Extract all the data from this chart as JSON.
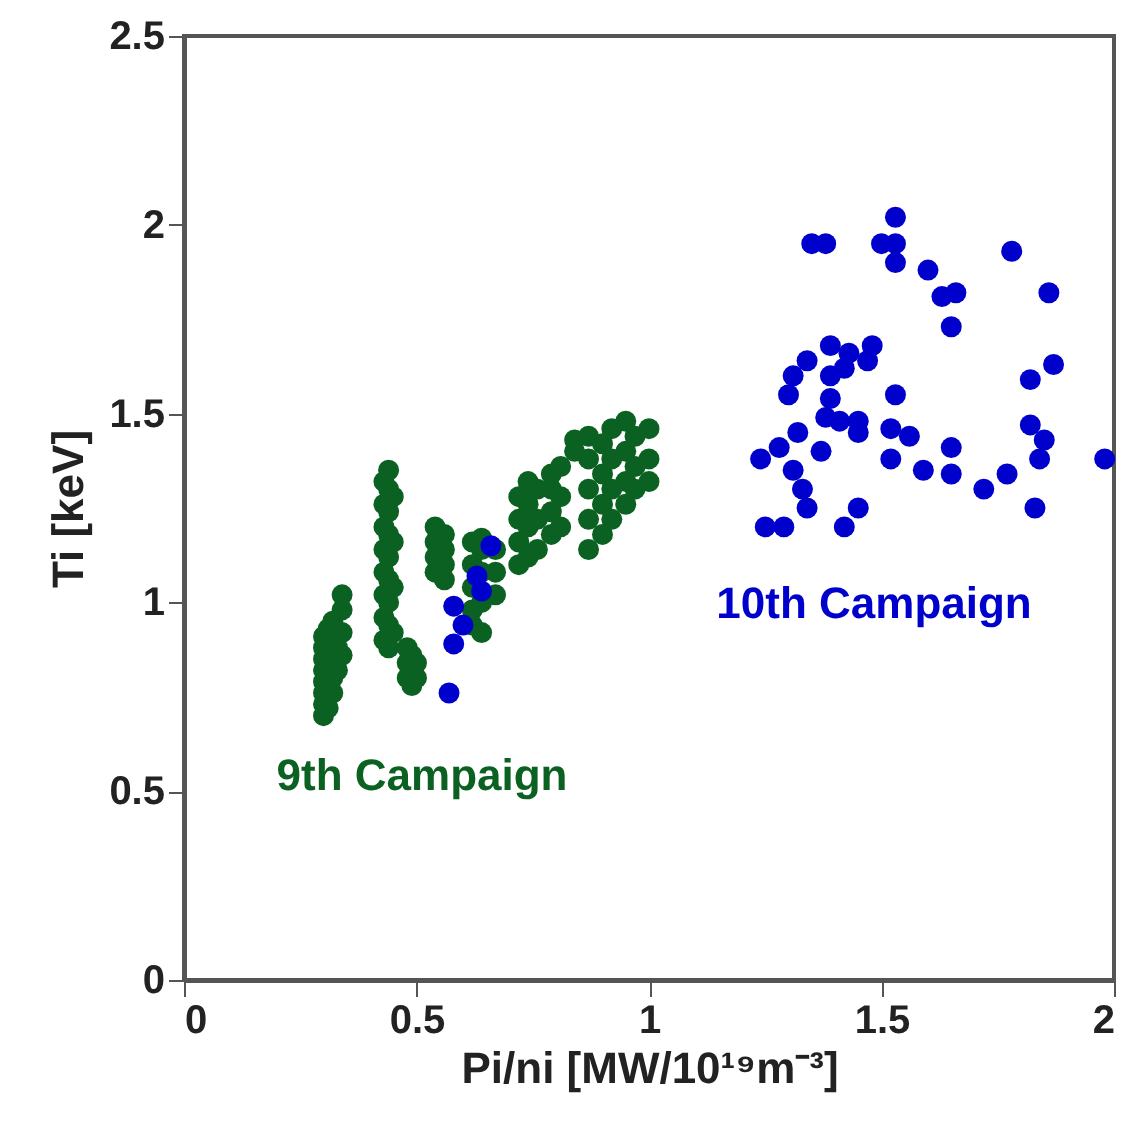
{
  "chart_data": {
    "type": "scatter",
    "xlabel": "Pi/ni [MW/10¹⁹m⁻³]",
    "ylabel": "Ti [keV]",
    "xlim": [
      0,
      2
    ],
    "ylim": [
      0,
      2.5
    ],
    "xticks": [
      0,
      0.5,
      1,
      1.5,
      2
    ],
    "yticks": [
      0,
      0.5,
      1,
      1.5,
      2,
      2.5
    ],
    "grid": false,
    "legend": false,
    "marker": "circle",
    "series": [
      {
        "name": "9th Campaign",
        "color": "#0b6121",
        "x": [
          0.3,
          0.3,
          0.3,
          0.3,
          0.3,
          0.3,
          0.3,
          0.3,
          0.31,
          0.31,
          0.32,
          0.32,
          0.32,
          0.33,
          0.33,
          0.34,
          0.34,
          0.34,
          0.34,
          0.43,
          0.43,
          0.43,
          0.43,
          0.43,
          0.43,
          0.43,
          0.43,
          0.44,
          0.44,
          0.44,
          0.44,
          0.44,
          0.44,
          0.44,
          0.44,
          0.44,
          0.45,
          0.45,
          0.45,
          0.45,
          0.48,
          0.48,
          0.48,
          0.49,
          0.49,
          0.5,
          0.5,
          0.54,
          0.54,
          0.54,
          0.54,
          0.56,
          0.56,
          0.56,
          0.56,
          0.62,
          0.62,
          0.62,
          0.62,
          0.62,
          0.64,
          0.64,
          0.64,
          0.64,
          0.64,
          0.67,
          0.67,
          0.67,
          0.72,
          0.72,
          0.72,
          0.72,
          0.74,
          0.74,
          0.74,
          0.74,
          0.76,
          0.76,
          0.76,
          0.79,
          0.79,
          0.79,
          0.79,
          0.81,
          0.81,
          0.81,
          0.84,
          0.84,
          0.87,
          0.87,
          0.87,
          0.87,
          0.87,
          0.9,
          0.9,
          0.9,
          0.9,
          0.92,
          0.92,
          0.92,
          0.92,
          0.95,
          0.95,
          0.95,
          0.95,
          0.97,
          0.97,
          0.97,
          1.0,
          1.0,
          1.0
        ],
        "values": [
          0.7,
          0.73,
          0.76,
          0.79,
          0.82,
          0.85,
          0.88,
          0.91,
          0.72,
          0.93,
          0.76,
          0.8,
          0.95,
          0.82,
          0.88,
          0.86,
          0.92,
          0.98,
          1.02,
          0.9,
          0.96,
          1.02,
          1.08,
          1.14,
          1.2,
          1.26,
          1.32,
          0.88,
          0.94,
          1.0,
          1.06,
          1.12,
          1.18,
          1.24,
          1.3,
          1.35,
          0.92,
          1.04,
          1.16,
          1.28,
          0.8,
          0.84,
          0.88,
          0.78,
          0.86,
          0.8,
          0.84,
          1.08,
          1.12,
          1.16,
          1.2,
          1.06,
          1.1,
          1.14,
          1.18,
          0.94,
          0.98,
          1.04,
          1.1,
          1.16,
          0.92,
          1.0,
          1.08,
          1.14,
          1.17,
          1.02,
          1.08,
          1.14,
          1.1,
          1.16,
          1.22,
          1.28,
          1.12,
          1.2,
          1.26,
          1.32,
          1.14,
          1.22,
          1.3,
          1.18,
          1.24,
          1.3,
          1.34,
          1.2,
          1.28,
          1.36,
          1.43,
          1.4,
          1.14,
          1.22,
          1.3,
          1.38,
          1.44,
          1.18,
          1.26,
          1.34,
          1.42,
          1.22,
          1.3,
          1.38,
          1.46,
          1.26,
          1.32,
          1.4,
          1.48,
          1.3,
          1.36,
          1.44,
          1.32,
          1.38,
          1.46
        ]
      },
      {
        "name": "10th Campaign",
        "color": "#0000cc",
        "x": [
          1.35,
          1.38,
          1.53,
          1.53,
          1.5,
          1.53,
          1.6,
          1.63,
          1.66,
          1.78,
          1.86,
          1.65,
          1.48,
          1.43,
          1.39,
          1.34,
          1.31,
          1.3,
          1.39,
          1.42,
          1.47,
          1.87,
          1.82,
          1.53,
          1.39,
          1.38,
          1.41,
          1.45,
          1.45,
          1.32,
          1.52,
          1.56,
          1.82,
          1.85,
          1.65,
          1.37,
          1.28,
          1.24,
          1.84,
          1.98,
          1.52,
          1.31,
          1.59,
          1.65,
          1.77,
          1.72,
          1.33,
          1.34,
          1.45,
          1.83,
          1.25,
          1.29,
          1.42,
          0.66,
          0.63,
          0.64,
          0.58,
          0.6,
          0.58,
          0.57
        ],
        "values": [
          1.95,
          1.95,
          2.02,
          1.95,
          1.95,
          1.9,
          1.88,
          1.81,
          1.82,
          1.93,
          1.82,
          1.73,
          1.68,
          1.66,
          1.68,
          1.64,
          1.6,
          1.55,
          1.6,
          1.62,
          1.64,
          1.63,
          1.59,
          1.55,
          1.54,
          1.49,
          1.48,
          1.48,
          1.45,
          1.45,
          1.46,
          1.44,
          1.47,
          1.43,
          1.41,
          1.4,
          1.41,
          1.38,
          1.38,
          1.38,
          1.38,
          1.35,
          1.35,
          1.34,
          1.34,
          1.3,
          1.3,
          1.25,
          1.25,
          1.25,
          1.2,
          1.2,
          1.2,
          1.15,
          1.07,
          1.03,
          0.99,
          0.94,
          0.89,
          0.76
        ]
      }
    ]
  }
}
